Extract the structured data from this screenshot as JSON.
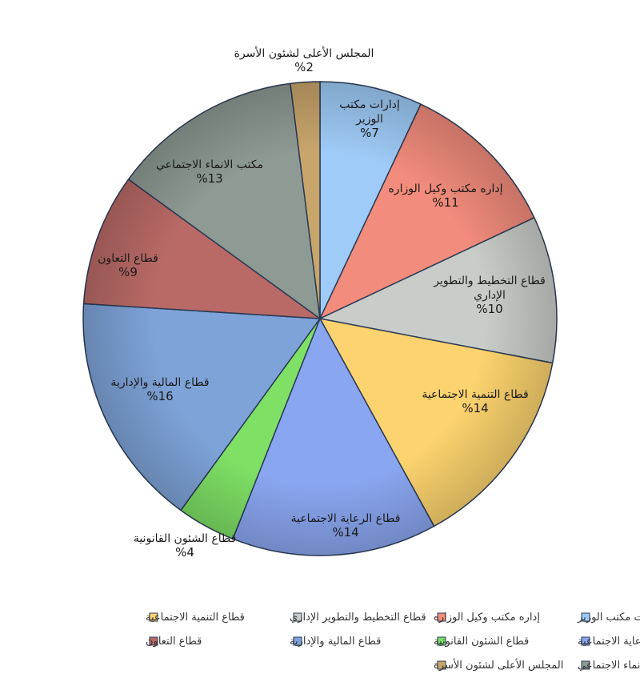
{
  "chart_data": {
    "type": "pie",
    "start_angle_deg": 90,
    "direction": "clockwise",
    "legend_position": "bottom",
    "slices": [
      {
        "label": "إدارات مكتب الوزير",
        "label_lines": [
          "إدارات مكتب",
          "الوزير"
        ],
        "value": 7,
        "value_text": "%7",
        "color": "#9ecbf7"
      },
      {
        "label": "إداره مكتب وكيل الوزاره",
        "label_lines": [
          "إداره مكتب وكيل الوزاره"
        ],
        "value": 11,
        "value_text": "%11",
        "color": "#f28c7c"
      },
      {
        "label": "قطاع التخطيط والتطوير الإداري",
        "label_lines": [
          "قطاع التخطيط والتطوير",
          "الإداري"
        ],
        "value": 10,
        "value_text": "%10",
        "color": "#c9cdc9"
      },
      {
        "label": "قطاع التنمية الاجتماعية",
        "label_lines": [
          "قطاع التنمية الاجتماعية"
        ],
        "value": 14,
        "value_text": "%14",
        "color": "#fcd36e"
      },
      {
        "label": "قطاع الرعاية الاجتماعية",
        "label_lines": [
          "قطاع الرعاية الاجتماعية"
        ],
        "value": 14,
        "value_text": "%14",
        "color": "#8aa6f0"
      },
      {
        "label": "قطاع الشئون القانونية",
        "label_lines": [
          "قطاع الشئون القانونية"
        ],
        "value": 4,
        "value_text": "%4",
        "color": "#7ee065"
      },
      {
        "label": "قطاع المالية والإدارية",
        "label_lines": [
          "قطاع المالية والإدارية"
        ],
        "value": 16,
        "value_text": "%16",
        "color": "#7ea3d8"
      },
      {
        "label": "قطاع التعاون",
        "label_lines": [
          "قطاع التعاون"
        ],
        "value": 9,
        "value_text": "%9",
        "color": "#b96a66"
      },
      {
        "label": "مكتب الانماء الاجتماعي",
        "label_lines": [
          "مكتب الانماء الاجتماعي"
        ],
        "value": 13,
        "value_text": "%13",
        "color": "#8e9a94"
      },
      {
        "label": "المجلس الأعلى لشئون الأسرة",
        "label_lines": [
          "المجلس الأعلى لشئون الأسرة"
        ],
        "value": 2,
        "value_text": "%2",
        "color": "#c8a56b"
      }
    ]
  }
}
